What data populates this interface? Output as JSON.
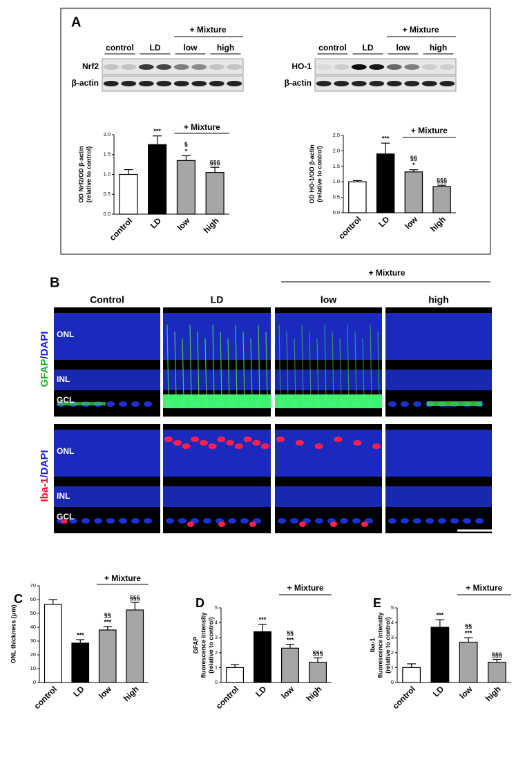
{
  "panel_a": {
    "label": "A",
    "blots": [
      {
        "target": "Nrf2",
        "loading": "β-actin",
        "groups": [
          "control",
          "LD",
          "low",
          "high"
        ],
        "treatment": "+ Mixture"
      },
      {
        "target": "HO-1",
        "loading": "β-actin",
        "groups": [
          "control",
          "LD",
          "low",
          "high"
        ],
        "treatment": "+ Mixture"
      }
    ]
  },
  "panel_b": {
    "label": "B",
    "treatment": "+ Mixture",
    "columns": [
      "Control",
      "LD",
      "low",
      "high"
    ],
    "rows": [
      {
        "marker": "GFAP",
        "counterstain": "/DAPI",
        "layers": [
          "ONL",
          "INL",
          "GCL"
        ]
      },
      {
        "marker": "Iba-1",
        "counterstain": "/DAPI",
        "layers": [
          "ONL",
          "INL",
          "GCL"
        ]
      }
    ]
  },
  "chart_data": [
    {
      "type": "bar",
      "ylabel": [
        "OD Nrf2/OD β-actin",
        "(relative to control)"
      ],
      "categories": [
        "control",
        "LD",
        "low",
        "high"
      ],
      "values": [
        1.0,
        1.75,
        1.35,
        1.05
      ],
      "errors": [
        0.12,
        0.22,
        0.12,
        0.13
      ],
      "colors": [
        "#ffffff",
        "#000000",
        "#a6a6a6",
        "#a6a6a6"
      ],
      "annotations": [
        [],
        [
          "***"
        ],
        [
          "§",
          "*"
        ],
        [
          "§§§"
        ]
      ],
      "bracket_label": "+ Mixture",
      "ylim": [
        0,
        2.0
      ],
      "yticks": [
        {
          "value": 0,
          "label": "0.0"
        },
        {
          "value": 0.5,
          "label": "0.5"
        },
        {
          "value": 1.0,
          "label": "1.0"
        },
        {
          "value": 1.5,
          "label": "1.5"
        },
        {
          "value": 2.0,
          "label": "2.0"
        }
      ]
    },
    {
      "type": "bar",
      "ylabel": [
        "OD HO-1/OD β-actin",
        "(relative to control)"
      ],
      "categories": [
        "control",
        "LD",
        "low",
        "high"
      ],
      "values": [
        1.0,
        1.9,
        1.32,
        0.85
      ],
      "errors": [
        0.04,
        0.35,
        0.07,
        0.04
      ],
      "colors": [
        "#ffffff",
        "#000000",
        "#a6a6a6",
        "#a6a6a6"
      ],
      "annotations": [
        [],
        [
          "***"
        ],
        [
          "§§",
          "*"
        ],
        [
          "§§§"
        ]
      ],
      "bracket_label": "+ Mixture",
      "ylim": [
        0,
        2.5
      ],
      "yticks": [
        {
          "value": 0,
          "label": "0.0"
        },
        {
          "value": 0.5,
          "label": "0.5"
        },
        {
          "value": 1.0,
          "label": "1.0"
        },
        {
          "value": 1.5,
          "label": "1.5"
        },
        {
          "value": 2.0,
          "label": "2.0"
        },
        {
          "value": 2.5,
          "label": "2.5"
        }
      ]
    },
    {
      "type": "bar",
      "panel": "C",
      "ylabel": [
        "ONL thickness (μm)"
      ],
      "categories": [
        "control",
        "LD",
        "low",
        "high"
      ],
      "values": [
        56.5,
        28.5,
        38,
        52.5
      ],
      "errors": [
        3.5,
        2.5,
        2.5,
        5.5
      ],
      "colors": [
        "#ffffff",
        "#000000",
        "#a6a6a6",
        "#a6a6a6"
      ],
      "annotations": [
        [],
        [
          "***"
        ],
        [
          "§§",
          "***"
        ],
        [
          "§§§"
        ]
      ],
      "bracket_label": "+ Mixture",
      "ylim": [
        0,
        70
      ],
      "yticks": [
        0,
        10,
        20,
        30,
        40,
        50,
        60,
        70
      ]
    },
    {
      "type": "bar",
      "panel": "D",
      "ylabel": [
        "GFAP",
        "fluorescence intensity",
        "(relative to control)"
      ],
      "categories": [
        "control",
        "LD",
        "low",
        "high"
      ],
      "values": [
        1.0,
        3.4,
        2.3,
        1.35
      ],
      "errors": [
        0.2,
        0.5,
        0.25,
        0.3
      ],
      "colors": [
        "#ffffff",
        "#000000",
        "#a6a6a6",
        "#a6a6a6"
      ],
      "annotations": [
        [],
        [
          "***"
        ],
        [
          "§§",
          "***"
        ],
        [
          "§§§"
        ]
      ],
      "bracket_label": "+ Mixture",
      "ylim": [
        0,
        5
      ],
      "yticks": [
        0,
        1,
        2,
        3,
        4,
        5
      ]
    },
    {
      "type": "bar",
      "panel": "E",
      "ylabel": [
        "Iba-1",
        "fluorescence intensity",
        "(relative to control)"
      ],
      "categories": [
        "control",
        "LD",
        "low",
        "high"
      ],
      "values": [
        1.0,
        3.7,
        2.7,
        1.35
      ],
      "errors": [
        0.25,
        0.5,
        0.3,
        0.2
      ],
      "colors": [
        "#ffffff",
        "#000000",
        "#a6a6a6",
        "#a6a6a6"
      ],
      "annotations": [
        [],
        [
          "***"
        ],
        [
          "§§",
          "***"
        ],
        [
          "§§§"
        ]
      ],
      "bracket_label": "+ Mixture",
      "ylim": [
        0,
        5
      ],
      "yticks": [
        0,
        1,
        2,
        3,
        4,
        5
      ]
    }
  ]
}
